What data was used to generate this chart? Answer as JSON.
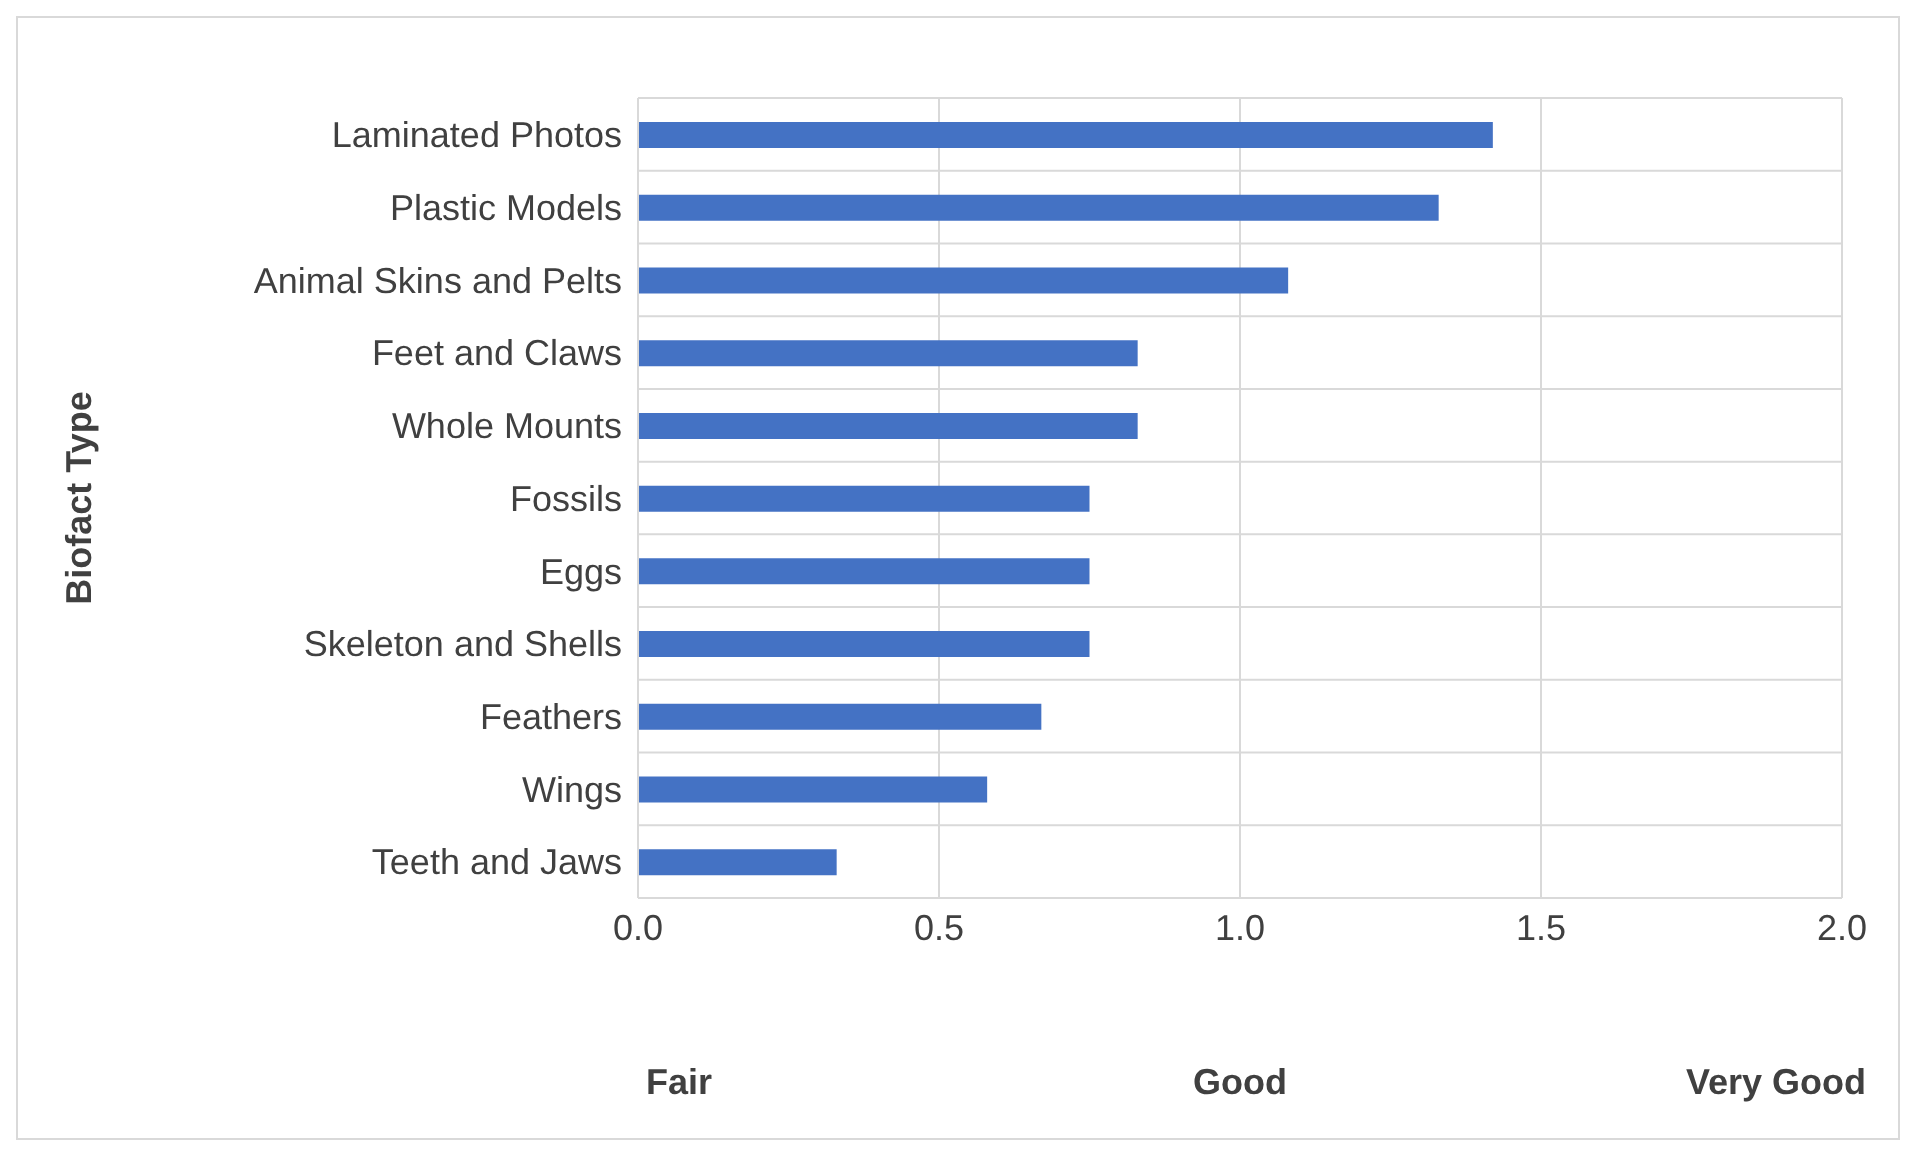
{
  "chart_data": {
    "type": "bar",
    "orientation": "horizontal",
    "ylabel": "Biofact Type",
    "categories": [
      "Laminated Photos",
      "Plastic Models",
      "Animal Skins and Pelts",
      "Feet and Claws",
      "Whole Mounts",
      "Fossils",
      "Eggs",
      "Skeleton and Shells",
      "Feathers",
      "Wings",
      "Teeth and Jaws"
    ],
    "values": [
      1.42,
      1.33,
      1.08,
      0.83,
      0.83,
      0.75,
      0.75,
      0.75,
      0.67,
      0.58,
      0.33
    ],
    "color": "#4472c4",
    "xlim": [
      0,
      2
    ],
    "xticks": [
      {
        "value": 0,
        "label": "0.0"
      },
      {
        "value": 0.5,
        "label": "0.5"
      },
      {
        "value": 1,
        "label": "1.0"
      },
      {
        "value": 1.5,
        "label": "1.5"
      },
      {
        "value": 2,
        "label": "2.0"
      }
    ],
    "grid": true,
    "annotations": [
      "Fair",
      "Good",
      "Very Good"
    ]
  }
}
